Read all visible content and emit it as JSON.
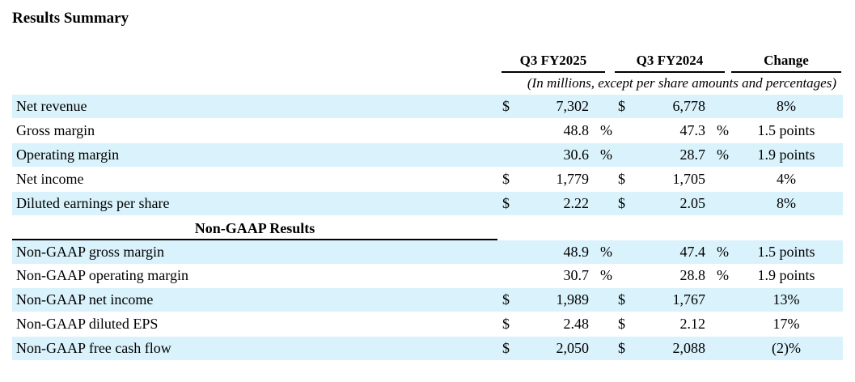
{
  "title": "Results Summary",
  "columns": {
    "q3_fy2025": "Q3 FY2025",
    "q3_fy2024": "Q3 FY2024",
    "change": "Change"
  },
  "units_note": "(In millions, except per share amounts and percentages)",
  "gaap_rows": [
    {
      "label": "Net revenue",
      "d1": "$",
      "v1": "7,302",
      "d2": "$",
      "v2": "6,778",
      "change": "8%"
    },
    {
      "label": "Gross margin",
      "d1": "",
      "v1": "48.8",
      "d2": "",
      "v2": "47.3",
      "pct": "%",
      "change": "1.5 points"
    },
    {
      "label": "Operating margin",
      "d1": "",
      "v1": "30.6",
      "d2": "",
      "v2": "28.7",
      "pct": "%",
      "change": "1.9 points"
    },
    {
      "label": "Net income",
      "d1": "$",
      "v1": "1,779",
      "d2": "$",
      "v2": "1,705",
      "change": "4%"
    },
    {
      "label": "Diluted earnings per share",
      "d1": "$",
      "v1": "2.22",
      "d2": "$",
      "v2": "2.05",
      "change": "8%"
    }
  ],
  "section_title": "Non-GAAP Results",
  "non_gaap_rows": [
    {
      "label": "Non-GAAP gross margin",
      "d1": "",
      "v1": "48.9",
      "d2": "",
      "v2": "47.4",
      "pct": "%",
      "change": "1.5 points"
    },
    {
      "label": "Non-GAAP operating margin",
      "d1": "",
      "v1": "30.7",
      "d2": "",
      "v2": "28.8",
      "pct": "%",
      "change": "1.9 points"
    },
    {
      "label": "Non-GAAP net income",
      "d1": "$",
      "v1": "1,989",
      "d2": "$",
      "v2": "1,767",
      "change": "13%"
    },
    {
      "label": "Non-GAAP diluted EPS",
      "d1": "$",
      "v1": "2.48",
      "d2": "$",
      "v2": "2.12",
      "change": "17%"
    },
    {
      "label": "Non-GAAP free cash flow",
      "d1": "$",
      "v1": "2,050",
      "d2": "$",
      "v2": "2,088",
      "change": "(2)%"
    }
  ]
}
